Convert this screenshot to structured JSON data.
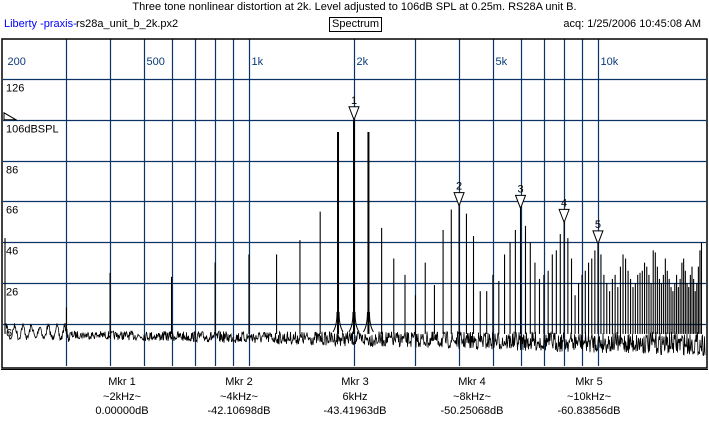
{
  "header": {
    "title": "Three tone nonlinear distortion at 2k. Level adjusted to 106dB SPL at 0.25m. RS28A unit B.",
    "brand": "Liberty -praxis-",
    "filename": "rs28a_unit_b_2k.px2",
    "mode": "Spectrum",
    "acquired": "acq: 1/25/2006 10:45:08 AM"
  },
  "colors": {
    "grid": "#0b3466",
    "axis_label": "#0b3a7a",
    "trace": "#000000",
    "brand": "#0000ff"
  },
  "chart_data": {
    "type": "line",
    "title": "Spectrum",
    "xscale": "log",
    "xlim": [
      200,
      20000
    ],
    "ylim": [
      -14,
      140
    ],
    "grid": true,
    "x_ticks": [
      {
        "value": 200,
        "label": "200"
      },
      {
        "value": 300,
        "label": ""
      },
      {
        "value": 400,
        "label": ""
      },
      {
        "value": 500,
        "label": "500"
      },
      {
        "value": 600,
        "label": ""
      },
      {
        "value": 700,
        "label": ""
      },
      {
        "value": 800,
        "label": ""
      },
      {
        "value": 900,
        "label": ""
      },
      {
        "value": 1000,
        "label": "1k"
      },
      {
        "value": 2000,
        "label": "2k"
      },
      {
        "value": 3000,
        "label": ""
      },
      {
        "value": 4000,
        "label": ""
      },
      {
        "value": 5000,
        "label": "5k"
      },
      {
        "value": 6000,
        "label": ""
      },
      {
        "value": 7000,
        "label": ""
      },
      {
        "value": 8000,
        "label": ""
      },
      {
        "value": 9000,
        "label": ""
      },
      {
        "value": 10000,
        "label": "10k"
      }
    ],
    "y_ticks": [
      {
        "value": 126,
        "label": "126"
      },
      {
        "value": 106,
        "label": "106dBSPL"
      },
      {
        "value": 86,
        "label": "86"
      },
      {
        "value": 66,
        "label": "66"
      },
      {
        "value": 46,
        "label": "46"
      },
      {
        "value": 26,
        "label": "26"
      },
      {
        "value": 6,
        "label": "6"
      }
    ],
    "reference_level_db": 106,
    "noise_floor_db": 3,
    "peaks_hz_db": [
      [
        200,
        48
      ],
      [
        300,
        14
      ],
      [
        400,
        31
      ],
      [
        600,
        29
      ],
      [
        800,
        36
      ],
      [
        1000,
        40
      ],
      [
        1200,
        40
      ],
      [
        1400,
        47
      ],
      [
        1600,
        61
      ],
      [
        1800,
        100
      ],
      [
        2000,
        106
      ],
      [
        2200,
        100
      ],
      [
        2400,
        53
      ],
      [
        2600,
        38
      ],
      [
        2800,
        30
      ],
      [
        3000,
        20
      ],
      [
        3200,
        36
      ],
      [
        3400,
        25
      ],
      [
        3600,
        52
      ],
      [
        3800,
        62
      ],
      [
        4000,
        64
      ],
      [
        4200,
        60
      ],
      [
        4400,
        49
      ],
      [
        4600,
        22
      ],
      [
        4800,
        22
      ],
      [
        5000,
        30
      ],
      [
        5200,
        27
      ],
      [
        5400,
        40
      ],
      [
        5600,
        46
      ],
      [
        5800,
        52
      ],
      [
        6000,
        63
      ],
      [
        6200,
        54
      ],
      [
        6400,
        46
      ],
      [
        6600,
        36
      ],
      [
        6800,
        28
      ],
      [
        7000,
        30
      ],
      [
        7200,
        32
      ],
      [
        7400,
        40
      ],
      [
        7600,
        42
      ],
      [
        7800,
        50
      ],
      [
        8000,
        56
      ],
      [
        8200,
        48
      ],
      [
        8400,
        38
      ],
      [
        8600,
        20
      ],
      [
        8800,
        26
      ],
      [
        9000,
        30
      ],
      [
        9200,
        32
      ],
      [
        9400,
        36
      ],
      [
        9600,
        38
      ],
      [
        9800,
        42
      ],
      [
        10000,
        45
      ],
      [
        10200,
        40
      ],
      [
        10400,
        30
      ],
      [
        10600,
        26
      ],
      [
        10800,
        22
      ],
      [
        11000,
        28
      ],
      [
        11200,
        30
      ],
      [
        11400,
        24
      ],
      [
        11600,
        34
      ],
      [
        11800,
        40
      ],
      [
        12000,
        38
      ],
      [
        12200,
        32
      ],
      [
        12400,
        28
      ],
      [
        12600,
        24
      ],
      [
        12800,
        26
      ],
      [
        13000,
        30
      ],
      [
        13200,
        31
      ],
      [
        13400,
        32
      ],
      [
        13600,
        36
      ],
      [
        13800,
        34
      ],
      [
        14000,
        30
      ],
      [
        14200,
        26
      ],
      [
        14400,
        42
      ],
      [
        14600,
        41
      ],
      [
        14800,
        34
      ],
      [
        15000,
        28
      ],
      [
        15200,
        26
      ],
      [
        15400,
        30
      ],
      [
        15600,
        38
      ],
      [
        15800,
        32
      ],
      [
        16000,
        28
      ],
      [
        16200,
        24
      ],
      [
        16400,
        22
      ],
      [
        16600,
        26
      ],
      [
        16800,
        30
      ],
      [
        17000,
        24
      ],
      [
        17200,
        28
      ],
      [
        17400,
        36
      ],
      [
        17600,
        38
      ],
      [
        17800,
        32
      ],
      [
        18000,
        26
      ],
      [
        18200,
        24
      ],
      [
        18400,
        30
      ],
      [
        18600,
        34
      ],
      [
        18800,
        28
      ],
      [
        19000,
        22
      ],
      [
        19200,
        26
      ],
      [
        19400,
        34
      ],
      [
        19600,
        42
      ],
      [
        19800,
        46
      ]
    ],
    "markers": [
      {
        "id": "1",
        "freq": 2000,
        "level_db": 106,
        "label": "Mkr 1",
        "freq_label": "~2kHz~",
        "value": "0.00000dB"
      },
      {
        "id": "2",
        "freq": 4000,
        "level_db": 63.9,
        "label": "Mkr 2",
        "freq_label": "~4kHz~",
        "value": "-42.10698dB"
      },
      {
        "id": "3",
        "freq": 6000,
        "level_db": 62.6,
        "label": "Mkr 3",
        "freq_label": "6kHz",
        "value": "-43.41963dB"
      },
      {
        "id": "4",
        "freq": 8000,
        "level_db": 55.7,
        "label": "Mkr 4",
        "freq_label": "~8kHz~",
        "value": "-50.25068dB"
      },
      {
        "id": "5",
        "freq": 10000,
        "level_db": 45.2,
        "label": "Mkr 5",
        "freq_label": "~10kHz~",
        "value": "-60.83856dB"
      }
    ]
  }
}
